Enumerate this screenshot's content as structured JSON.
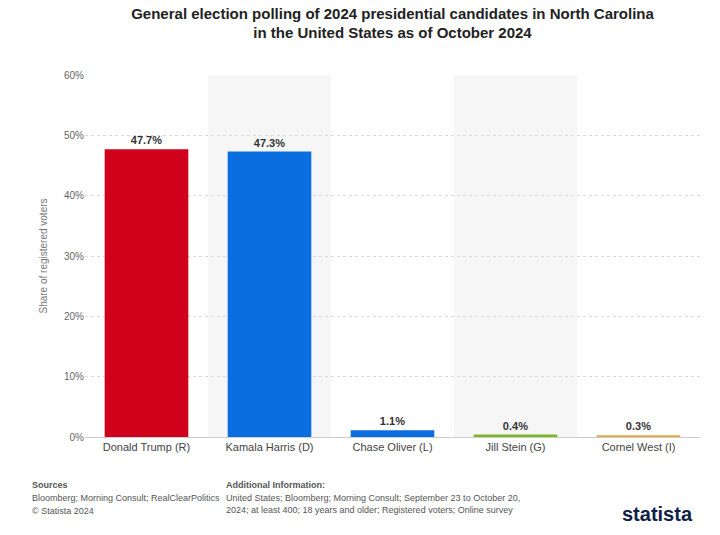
{
  "chart_data": {
    "type": "bar",
    "title": "General election polling of 2024 presidential candidates in North Carolina in the United States as of October 2024",
    "y_label": "Share of registered voters",
    "categories": [
      "Donald Trump (R)",
      "Kamala Harris (D)",
      "Chase Oliver (L)",
      "Jill Stein (G)",
      "Cornel West (I)"
    ],
    "values": [
      47.7,
      47.3,
      1.1,
      0.4,
      0.3
    ],
    "value_labels": [
      "47.7%",
      "47.3%",
      "1.1%",
      "0.4%",
      "0.3%"
    ],
    "colors": [
      "#d0021b",
      "#0b6ee0",
      "#0b6ee0",
      "#7ab826",
      "#e8a33d"
    ],
    "data_labels": true,
    "ylim": [
      0,
      60
    ],
    "yticks": [
      {
        "value": 0,
        "label": "0%"
      },
      {
        "value": 10,
        "label": "10%"
      },
      {
        "value": 20,
        "label": "20%"
      },
      {
        "value": 30,
        "label": "30%"
      },
      {
        "value": 40,
        "label": "40%"
      },
      {
        "value": 50,
        "label": "50%"
      },
      {
        "value": 60,
        "label": "60%"
      }
    ],
    "grid": true,
    "annotations": [
      "Sources",
      "Bloomberg; Morning Consult; RealClearPolitics",
      "© Statista 2024",
      "Additional Information:",
      "United States; Bloomberg; Morning Consult; September 23 to October 20,",
      "2024; at least 400; 18 years and older; Registered voters; Online survey",
      "statista"
    ]
  }
}
